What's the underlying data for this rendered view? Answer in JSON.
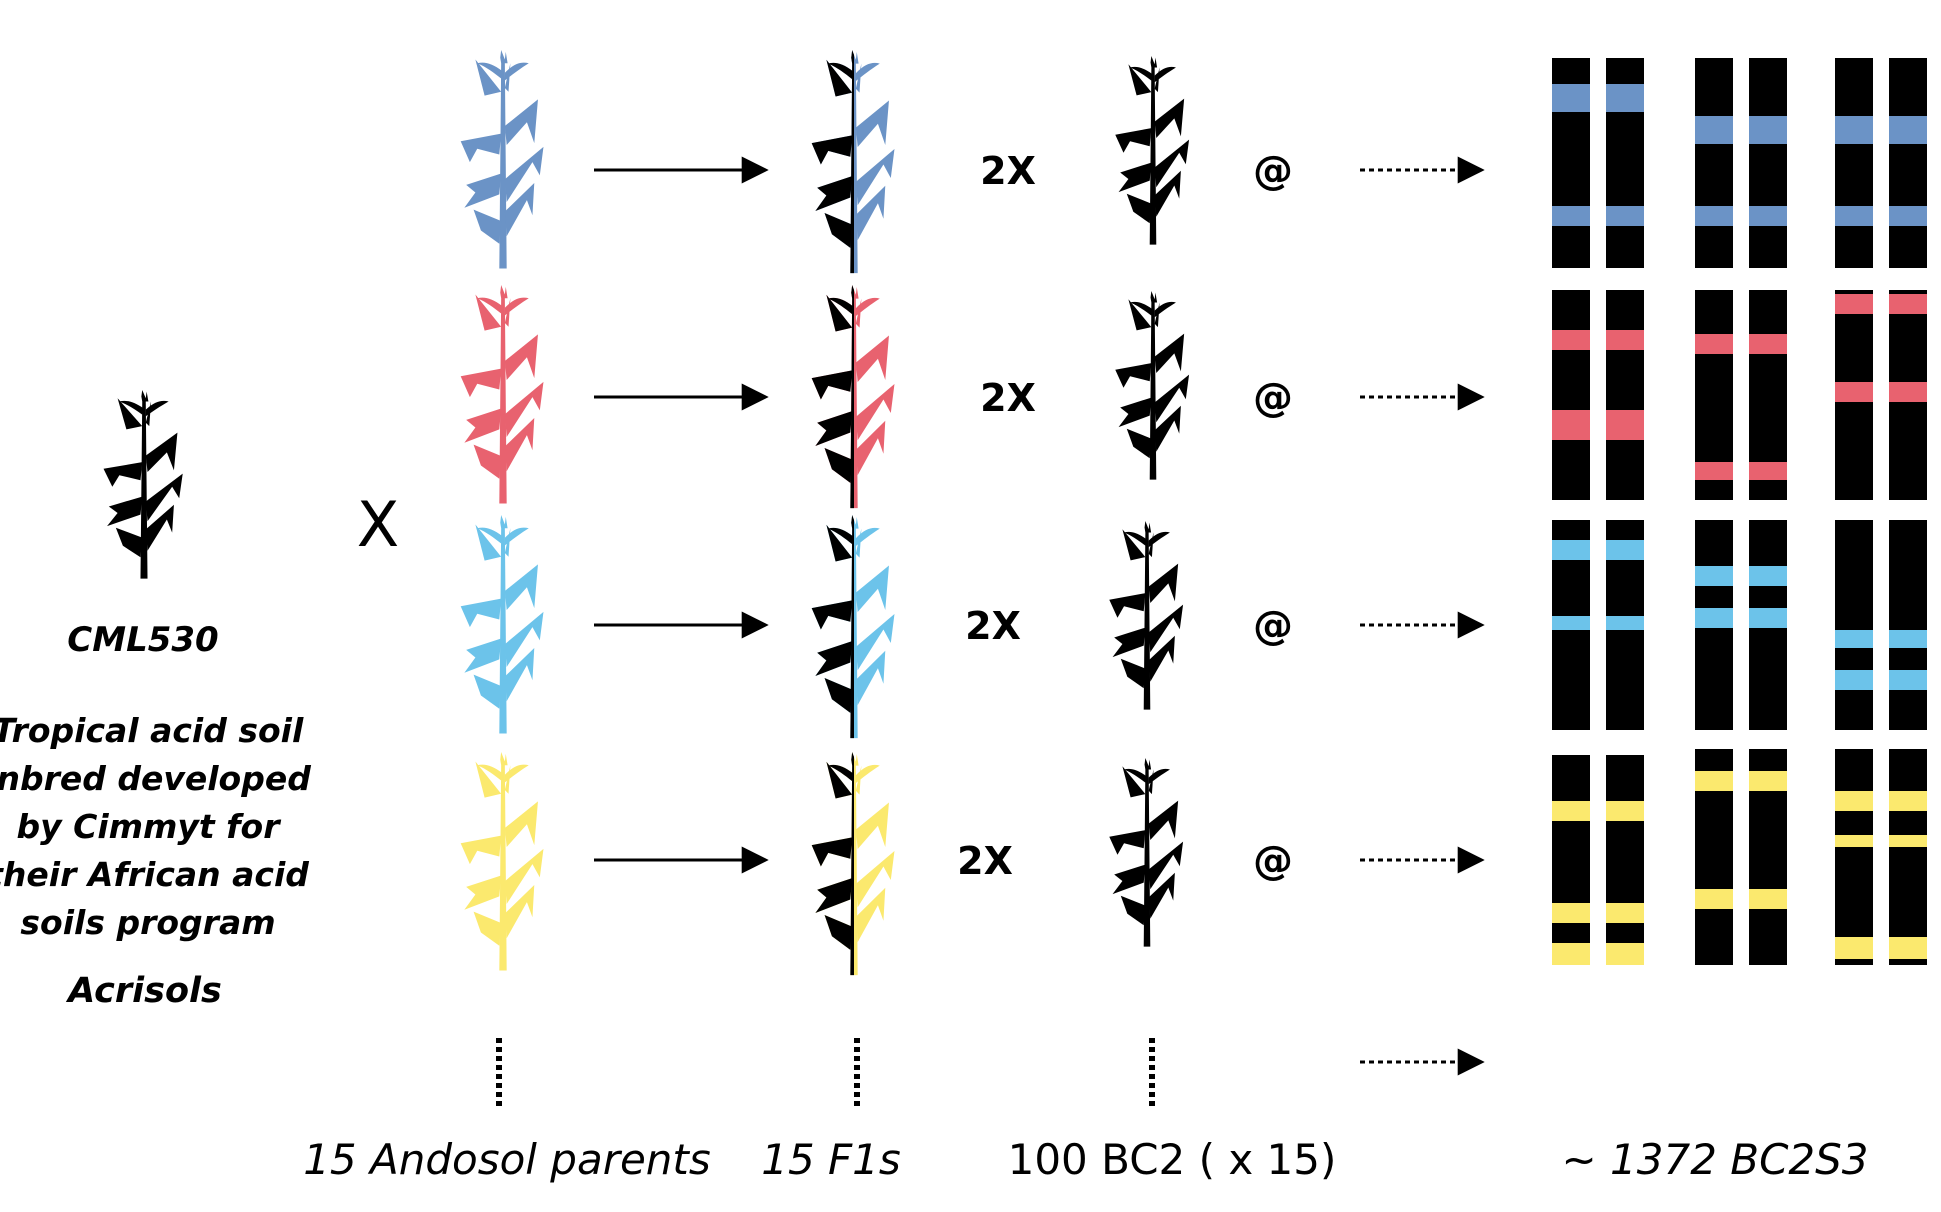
{
  "recurrent_parent": {
    "name": "CML530",
    "description_lines": [
      "Tropical acid soil",
      "inbred developed",
      "by Cimmyt for",
      "their African acid",
      "soils program"
    ],
    "soil": "Acrisols"
  },
  "cross_symbol": "X",
  "generation_factor": "2X",
  "selfing_symbol": "@",
  "columns": {
    "parents_label": "15 Andosol parents",
    "f1_label": "15 F1s",
    "bc2_label": "100 BC2 ( x 15)",
    "result_label": "~ 1372 BC2S3"
  },
  "rows": [
    {
      "name": "blue",
      "color": "#6b93c6"
    },
    {
      "name": "pink",
      "color": "#e8626f"
    },
    {
      "name": "light-blue",
      "color": "#6cc3ea"
    },
    {
      "name": "yellow",
      "color": "#fbe96e"
    }
  ],
  "chromosome_color": "#000000"
}
